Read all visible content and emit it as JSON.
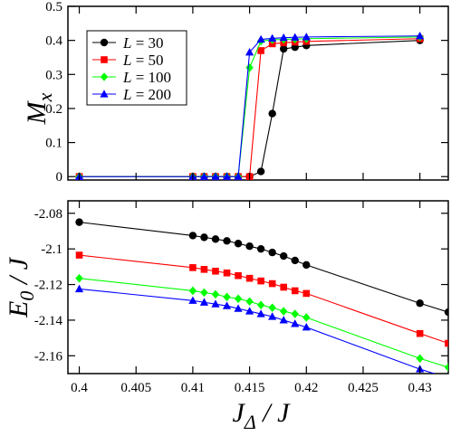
{
  "chart_data": [
    {
      "type": "line",
      "panel": "top",
      "ylabel": "M_x",
      "ylabel_main": "M",
      "ylabel_sub": "x",
      "xlim": [
        0.399,
        0.4325
      ],
      "ylim": [
        -0.01,
        0.5
      ],
      "yticks": [
        0,
        0.1,
        0.2,
        0.3,
        0.4,
        0.5
      ],
      "ytick_labels": [
        "0",
        "0.1",
        "0.2",
        "0.3",
        "0.4",
        "0.5"
      ],
      "legend_position": "top-left",
      "series": [
        {
          "name": "L = 30",
          "color": "#000000",
          "marker": "circle",
          "points": [
            [
              0.4,
              0.0
            ],
            [
              0.41,
              0.0
            ],
            [
              0.411,
              0.0
            ],
            [
              0.412,
              0.0
            ],
            [
              0.413,
              0.0
            ],
            [
              0.414,
              0.0
            ],
            [
              0.415,
              0.0
            ],
            [
              0.416,
              0.015
            ],
            [
              0.417,
              0.185
            ],
            [
              0.418,
              0.375
            ],
            [
              0.419,
              0.38
            ],
            [
              0.42,
              0.385
            ],
            [
              0.43,
              0.4
            ]
          ]
        },
        {
          "name": "L = 50",
          "color": "#ff0000",
          "marker": "square",
          "points": [
            [
              0.4,
              0.0
            ],
            [
              0.41,
              0.0
            ],
            [
              0.411,
              0.0
            ],
            [
              0.412,
              0.0
            ],
            [
              0.413,
              0.0
            ],
            [
              0.414,
              0.0
            ],
            [
              0.415,
              0.0
            ],
            [
              0.416,
              0.37
            ],
            [
              0.417,
              0.39
            ],
            [
              0.418,
              0.393
            ],
            [
              0.419,
              0.395
            ],
            [
              0.42,
              0.397
            ],
            [
              0.43,
              0.405
            ]
          ]
        },
        {
          "name": "L = 100",
          "color": "#00ff00",
          "marker": "diamond",
          "points": [
            [
              0.4,
              0.0
            ],
            [
              0.41,
              0.0
            ],
            [
              0.411,
              0.0
            ],
            [
              0.412,
              0.0
            ],
            [
              0.413,
              0.0
            ],
            [
              0.414,
              0.0
            ],
            [
              0.415,
              0.32
            ],
            [
              0.416,
              0.398
            ],
            [
              0.417,
              0.402
            ],
            [
              0.418,
              0.403
            ],
            [
              0.419,
              0.404
            ],
            [
              0.42,
              0.405
            ],
            [
              0.43,
              0.41
            ]
          ]
        },
        {
          "name": "L = 200",
          "color": "#0000ff",
          "marker": "triangle",
          "points": [
            [
              0.4,
              0.0
            ],
            [
              0.41,
              0.0
            ],
            [
              0.411,
              0.0
            ],
            [
              0.412,
              0.0
            ],
            [
              0.413,
              0.0
            ],
            [
              0.414,
              0.0
            ],
            [
              0.415,
              0.365
            ],
            [
              0.416,
              0.403
            ],
            [
              0.417,
              0.406
            ],
            [
              0.418,
              0.408
            ],
            [
              0.419,
              0.409
            ],
            [
              0.42,
              0.41
            ],
            [
              0.43,
              0.413
            ]
          ]
        }
      ]
    },
    {
      "type": "line",
      "panel": "bottom",
      "xlabel": "J_Δ / J",
      "xlabel_main": "J",
      "xlabel_sub": "Δ",
      "xlabel_tail": " / J",
      "ylabel": "E_0 / J",
      "ylabel_main": "E",
      "ylabel_sub": "0",
      "ylabel_tail": " / J",
      "xlim": [
        0.399,
        0.4325
      ],
      "ylim": [
        -2.17,
        -2.073
      ],
      "xticks": [
        0.4,
        0.405,
        0.41,
        0.415,
        0.42,
        0.425,
        0.43
      ],
      "xtick_labels": [
        "0.4",
        "0.405",
        "0.41",
        "0.415",
        "0.42",
        "0.425",
        "0.43"
      ],
      "yticks": [
        -2.08,
        -2.1,
        -2.12,
        -2.14,
        -2.16
      ],
      "ytick_labels": [
        "-2.08",
        "-2.1",
        "-2.12",
        "-2.14",
        "-2.16"
      ],
      "series": [
        {
          "name": "L = 30",
          "color": "#000000",
          "marker": "circle",
          "points": [
            [
              0.4,
              -2.085
            ],
            [
              0.41,
              -2.0925
            ],
            [
              0.411,
              -2.0935
            ],
            [
              0.412,
              -2.0945
            ],
            [
              0.413,
              -2.0955
            ],
            [
              0.414,
              -2.097
            ],
            [
              0.415,
              -2.0985
            ],
            [
              0.416,
              -2.1
            ],
            [
              0.417,
              -2.102
            ],
            [
              0.418,
              -2.104
            ],
            [
              0.419,
              -2.1065
            ],
            [
              0.42,
              -2.109
            ],
            [
              0.43,
              -2.1305
            ],
            [
              0.4325,
              -2.1355
            ]
          ]
        },
        {
          "name": "L = 50",
          "color": "#ff0000",
          "marker": "square",
          "points": [
            [
              0.4,
              -2.1035
            ],
            [
              0.41,
              -2.1105
            ],
            [
              0.411,
              -2.1115
            ],
            [
              0.412,
              -2.1125
            ],
            [
              0.413,
              -2.1135
            ],
            [
              0.414,
              -2.115
            ],
            [
              0.415,
              -2.1165
            ],
            [
              0.416,
              -2.118
            ],
            [
              0.417,
              -2.1195
            ],
            [
              0.418,
              -2.1215
            ],
            [
              0.419,
              -2.1235
            ],
            [
              0.42,
              -2.125
            ],
            [
              0.43,
              -2.1475
            ],
            [
              0.4325,
              -2.153
            ]
          ]
        },
        {
          "name": "L = 100",
          "color": "#00ff00",
          "marker": "diamond",
          "points": [
            [
              0.4,
              -2.1165
            ],
            [
              0.41,
              -2.1235
            ],
            [
              0.411,
              -2.1245
            ],
            [
              0.412,
              -2.1255
            ],
            [
              0.413,
              -2.127
            ],
            [
              0.414,
              -2.128
            ],
            [
              0.415,
              -2.1295
            ],
            [
              0.416,
              -2.1315
            ],
            [
              0.417,
              -2.133
            ],
            [
              0.418,
              -2.135
            ],
            [
              0.419,
              -2.1365
            ],
            [
              0.42,
              -2.1385
            ],
            [
              0.43,
              -2.1615
            ],
            [
              0.4325,
              -2.1665
            ]
          ]
        },
        {
          "name": "L = 200",
          "color": "#0000ff",
          "marker": "triangle",
          "points": [
            [
              0.4,
              -2.1225
            ],
            [
              0.41,
              -2.129
            ],
            [
              0.411,
              -2.13
            ],
            [
              0.412,
              -2.131
            ],
            [
              0.413,
              -2.132
            ],
            [
              0.414,
              -2.1335
            ],
            [
              0.415,
              -2.135
            ],
            [
              0.416,
              -2.1365
            ],
            [
              0.417,
              -2.138
            ],
            [
              0.418,
              -2.14
            ],
            [
              0.419,
              -2.142
            ],
            [
              0.42,
              -2.144
            ],
            [
              0.43,
              -2.1675
            ],
            [
              0.4325,
              -2.1725
            ]
          ]
        }
      ]
    }
  ]
}
